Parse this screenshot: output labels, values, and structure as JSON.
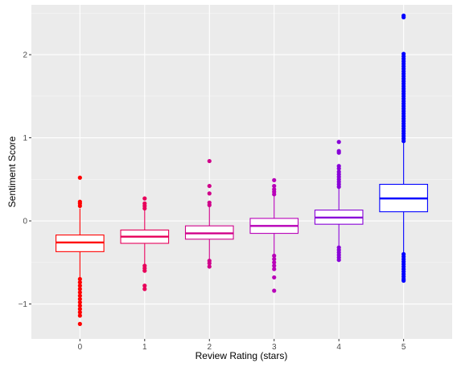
{
  "chart_data": {
    "type": "boxplot",
    "xlabel": "Review Rating (stars)",
    "ylabel": "Sentiment Score",
    "ylim": [
      -1.42,
      2.6
    ],
    "y_ticks": [
      -1,
      0,
      1,
      2
    ],
    "grid": true,
    "legend": "none",
    "background": "#EBEBEB",
    "categories": [
      "0",
      "1",
      "2",
      "3",
      "4",
      "5"
    ],
    "boxes": [
      {
        "category": "0",
        "color": "#FF0000",
        "whisker_low": -0.68,
        "q1": -0.37,
        "median": -0.26,
        "q3": -0.17,
        "whisker_high": 0.15,
        "outliers": [
          0.52,
          0.23,
          0.21,
          0.18,
          -0.7,
          -0.74,
          -0.78,
          -0.82,
          -0.86,
          -0.9,
          -0.94,
          -0.98,
          -1.02,
          -1.06,
          -1.1,
          -1.14,
          -1.24
        ]
      },
      {
        "category": "1",
        "color": "#E8005A",
        "whisker_low": -0.52,
        "q1": -0.27,
        "median": -0.19,
        "q3": -0.11,
        "whisker_high": 0.13,
        "outliers": [
          0.27,
          0.21,
          0.18,
          0.15,
          -0.54,
          -0.57,
          -0.6,
          -0.78,
          -0.82
        ]
      },
      {
        "category": "2",
        "color": "#D0008A",
        "whisker_low": -0.46,
        "q1": -0.22,
        "median": -0.15,
        "q3": -0.06,
        "whisker_high": 0.17,
        "outliers": [
          0.72,
          0.42,
          0.33,
          0.22,
          0.19,
          -0.48,
          -0.51,
          -0.55
        ]
      },
      {
        "category": "3",
        "color": "#B800B8",
        "whisker_low": -0.4,
        "q1": -0.15,
        "median": -0.06,
        "q3": 0.03,
        "whisker_high": 0.3,
        "outliers": [
          0.49,
          0.42,
          0.38,
          0.35,
          0.32,
          -0.42,
          -0.46,
          -0.5,
          -0.54,
          -0.58,
          -0.68,
          -0.84
        ]
      },
      {
        "category": "4",
        "color": "#8800D8",
        "whisker_low": -0.3,
        "q1": -0.04,
        "median": 0.04,
        "q3": 0.13,
        "whisker_high": 0.39,
        "outliers": [
          0.95,
          0.84,
          0.82,
          0.66,
          0.63,
          0.59,
          0.56,
          0.53,
          0.5,
          0.47,
          0.44,
          0.41,
          -0.32,
          -0.35,
          -0.38,
          -0.41,
          -0.44,
          -0.47
        ]
      },
      {
        "category": "5",
        "color": "#0000FF",
        "whisker_low": -0.38,
        "q1": 0.11,
        "median": 0.27,
        "q3": 0.44,
        "whisker_high": 0.94,
        "outliers": [
          2.47,
          2.45,
          2.01,
          1.98,
          1.95,
          1.92,
          1.89,
          1.86,
          1.83,
          1.8,
          1.77,
          1.74,
          1.71,
          1.68,
          1.65,
          1.62,
          1.59,
          1.56,
          1.53,
          1.5,
          1.47,
          1.44,
          1.41,
          1.38,
          1.35,
          1.32,
          1.29,
          1.26,
          1.23,
          1.2,
          1.17,
          1.14,
          1.11,
          1.08,
          1.05,
          1.02,
          0.99,
          0.96,
          -0.4,
          -0.43,
          -0.46,
          -0.49,
          -0.52,
          -0.55,
          -0.58,
          -0.61,
          -0.64,
          -0.67,
          -0.7,
          -0.72
        ]
      }
    ]
  }
}
